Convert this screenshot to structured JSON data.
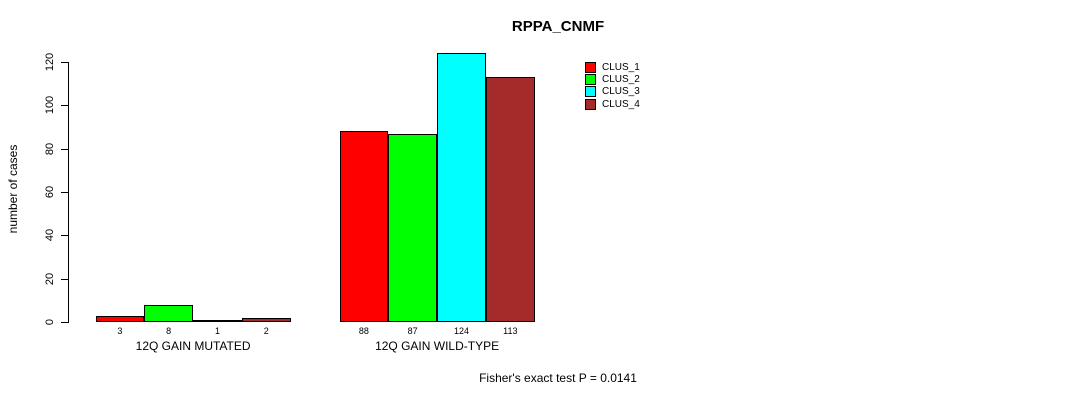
{
  "chart_data": {
    "type": "bar",
    "title": "RPPA_CNMF",
    "ylabel": "number of cases",
    "xlabel": "",
    "ylim": [
      0,
      120
    ],
    "yticks": [
      0,
      20,
      40,
      60,
      80,
      100,
      120
    ],
    "grid": false,
    "legend_position": "top-right",
    "categories": [
      "12Q GAIN MUTATED",
      "12Q GAIN WILD-TYPE"
    ],
    "series": [
      {
        "name": "CLUS_1",
        "color": "#ff0000",
        "values": [
          3,
          88
        ]
      },
      {
        "name": "CLUS_2",
        "color": "#00ff00",
        "values": [
          8,
          87
        ]
      },
      {
        "name": "CLUS_3",
        "color": "#00ffff",
        "values": [
          1,
          124
        ]
      },
      {
        "name": "CLUS_4",
        "color": "#a52a2a",
        "values": [
          2,
          113
        ]
      }
    ],
    "bar_value_labels": [
      [
        3,
        8,
        1,
        2
      ],
      [
        88,
        87,
        124,
        113
      ]
    ],
    "annotation": "Fisher's exact test P = 0.0141"
  }
}
